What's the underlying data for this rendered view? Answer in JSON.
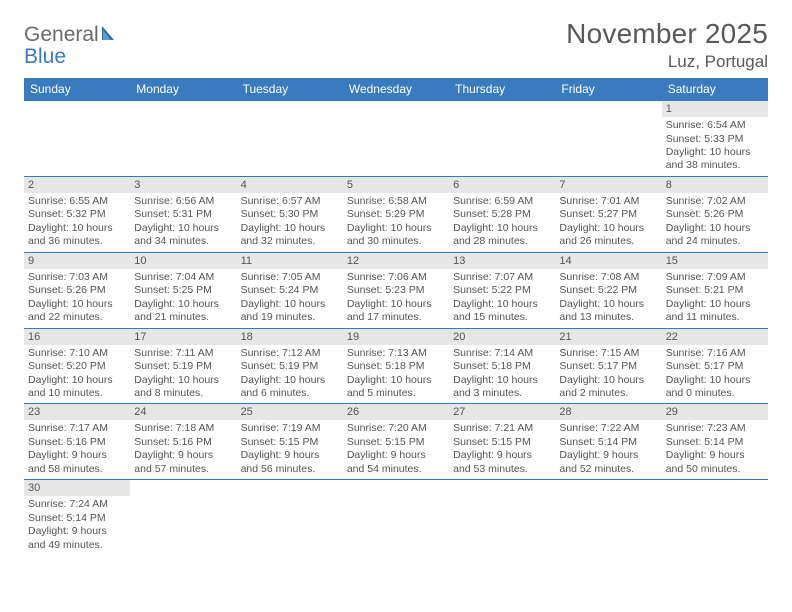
{
  "logo": {
    "general": "General",
    "blue": "Blue"
  },
  "title": "November 2025",
  "location": "Luz, Portugal",
  "colors": {
    "header_bg": "#3a7bbf",
    "header_text": "#ffffff",
    "daynum_bg": "#e6e6e6",
    "text": "#555555",
    "title_text": "#595959",
    "divider": "#3a7bbf",
    "logo_gray": "#6b6b6b",
    "logo_blue": "#3a7bbf",
    "page_bg": "#ffffff"
  },
  "typography": {
    "title_fontsize": 28,
    "location_fontsize": 17,
    "dow_fontsize": 12,
    "daynum_fontsize": 11,
    "body_fontsize": 10.5,
    "logo_fontsize": 21
  },
  "days_of_week": [
    "Sunday",
    "Monday",
    "Tuesday",
    "Wednesday",
    "Thursday",
    "Friday",
    "Saturday"
  ],
  "weeks": [
    [
      null,
      null,
      null,
      null,
      null,
      null,
      {
        "n": "1",
        "sunrise": "Sunrise: 6:54 AM",
        "sunset": "Sunset: 5:33 PM",
        "daylight": "Daylight: 10 hours and 38 minutes."
      }
    ],
    [
      {
        "n": "2",
        "sunrise": "Sunrise: 6:55 AM",
        "sunset": "Sunset: 5:32 PM",
        "daylight": "Daylight: 10 hours and 36 minutes."
      },
      {
        "n": "3",
        "sunrise": "Sunrise: 6:56 AM",
        "sunset": "Sunset: 5:31 PM",
        "daylight": "Daylight: 10 hours and 34 minutes."
      },
      {
        "n": "4",
        "sunrise": "Sunrise: 6:57 AM",
        "sunset": "Sunset: 5:30 PM",
        "daylight": "Daylight: 10 hours and 32 minutes."
      },
      {
        "n": "5",
        "sunrise": "Sunrise: 6:58 AM",
        "sunset": "Sunset: 5:29 PM",
        "daylight": "Daylight: 10 hours and 30 minutes."
      },
      {
        "n": "6",
        "sunrise": "Sunrise: 6:59 AM",
        "sunset": "Sunset: 5:28 PM",
        "daylight": "Daylight: 10 hours and 28 minutes."
      },
      {
        "n": "7",
        "sunrise": "Sunrise: 7:01 AM",
        "sunset": "Sunset: 5:27 PM",
        "daylight": "Daylight: 10 hours and 26 minutes."
      },
      {
        "n": "8",
        "sunrise": "Sunrise: 7:02 AM",
        "sunset": "Sunset: 5:26 PM",
        "daylight": "Daylight: 10 hours and 24 minutes."
      }
    ],
    [
      {
        "n": "9",
        "sunrise": "Sunrise: 7:03 AM",
        "sunset": "Sunset: 5:26 PM",
        "daylight": "Daylight: 10 hours and 22 minutes."
      },
      {
        "n": "10",
        "sunrise": "Sunrise: 7:04 AM",
        "sunset": "Sunset: 5:25 PM",
        "daylight": "Daylight: 10 hours and 21 minutes."
      },
      {
        "n": "11",
        "sunrise": "Sunrise: 7:05 AM",
        "sunset": "Sunset: 5:24 PM",
        "daylight": "Daylight: 10 hours and 19 minutes."
      },
      {
        "n": "12",
        "sunrise": "Sunrise: 7:06 AM",
        "sunset": "Sunset: 5:23 PM",
        "daylight": "Daylight: 10 hours and 17 minutes."
      },
      {
        "n": "13",
        "sunrise": "Sunrise: 7:07 AM",
        "sunset": "Sunset: 5:22 PM",
        "daylight": "Daylight: 10 hours and 15 minutes."
      },
      {
        "n": "14",
        "sunrise": "Sunrise: 7:08 AM",
        "sunset": "Sunset: 5:22 PM",
        "daylight": "Daylight: 10 hours and 13 minutes."
      },
      {
        "n": "15",
        "sunrise": "Sunrise: 7:09 AM",
        "sunset": "Sunset: 5:21 PM",
        "daylight": "Daylight: 10 hours and 11 minutes."
      }
    ],
    [
      {
        "n": "16",
        "sunrise": "Sunrise: 7:10 AM",
        "sunset": "Sunset: 5:20 PM",
        "daylight": "Daylight: 10 hours and 10 minutes."
      },
      {
        "n": "17",
        "sunrise": "Sunrise: 7:11 AM",
        "sunset": "Sunset: 5:19 PM",
        "daylight": "Daylight: 10 hours and 8 minutes."
      },
      {
        "n": "18",
        "sunrise": "Sunrise: 7:12 AM",
        "sunset": "Sunset: 5:19 PM",
        "daylight": "Daylight: 10 hours and 6 minutes."
      },
      {
        "n": "19",
        "sunrise": "Sunrise: 7:13 AM",
        "sunset": "Sunset: 5:18 PM",
        "daylight": "Daylight: 10 hours and 5 minutes."
      },
      {
        "n": "20",
        "sunrise": "Sunrise: 7:14 AM",
        "sunset": "Sunset: 5:18 PM",
        "daylight": "Daylight: 10 hours and 3 minutes."
      },
      {
        "n": "21",
        "sunrise": "Sunrise: 7:15 AM",
        "sunset": "Sunset: 5:17 PM",
        "daylight": "Daylight: 10 hours and 2 minutes."
      },
      {
        "n": "22",
        "sunrise": "Sunrise: 7:16 AM",
        "sunset": "Sunset: 5:17 PM",
        "daylight": "Daylight: 10 hours and 0 minutes."
      }
    ],
    [
      {
        "n": "23",
        "sunrise": "Sunrise: 7:17 AM",
        "sunset": "Sunset: 5:16 PM",
        "daylight": "Daylight: 9 hours and 58 minutes."
      },
      {
        "n": "24",
        "sunrise": "Sunrise: 7:18 AM",
        "sunset": "Sunset: 5:16 PM",
        "daylight": "Daylight: 9 hours and 57 minutes."
      },
      {
        "n": "25",
        "sunrise": "Sunrise: 7:19 AM",
        "sunset": "Sunset: 5:15 PM",
        "daylight": "Daylight: 9 hours and 56 minutes."
      },
      {
        "n": "26",
        "sunrise": "Sunrise: 7:20 AM",
        "sunset": "Sunset: 5:15 PM",
        "daylight": "Daylight: 9 hours and 54 minutes."
      },
      {
        "n": "27",
        "sunrise": "Sunrise: 7:21 AM",
        "sunset": "Sunset: 5:15 PM",
        "daylight": "Daylight: 9 hours and 53 minutes."
      },
      {
        "n": "28",
        "sunrise": "Sunrise: 7:22 AM",
        "sunset": "Sunset: 5:14 PM",
        "daylight": "Daylight: 9 hours and 52 minutes."
      },
      {
        "n": "29",
        "sunrise": "Sunrise: 7:23 AM",
        "sunset": "Sunset: 5:14 PM",
        "daylight": "Daylight: 9 hours and 50 minutes."
      }
    ],
    [
      {
        "n": "30",
        "sunrise": "Sunrise: 7:24 AM",
        "sunset": "Sunset: 5:14 PM",
        "daylight": "Daylight: 9 hours and 49 minutes."
      },
      null,
      null,
      null,
      null,
      null,
      null
    ]
  ]
}
